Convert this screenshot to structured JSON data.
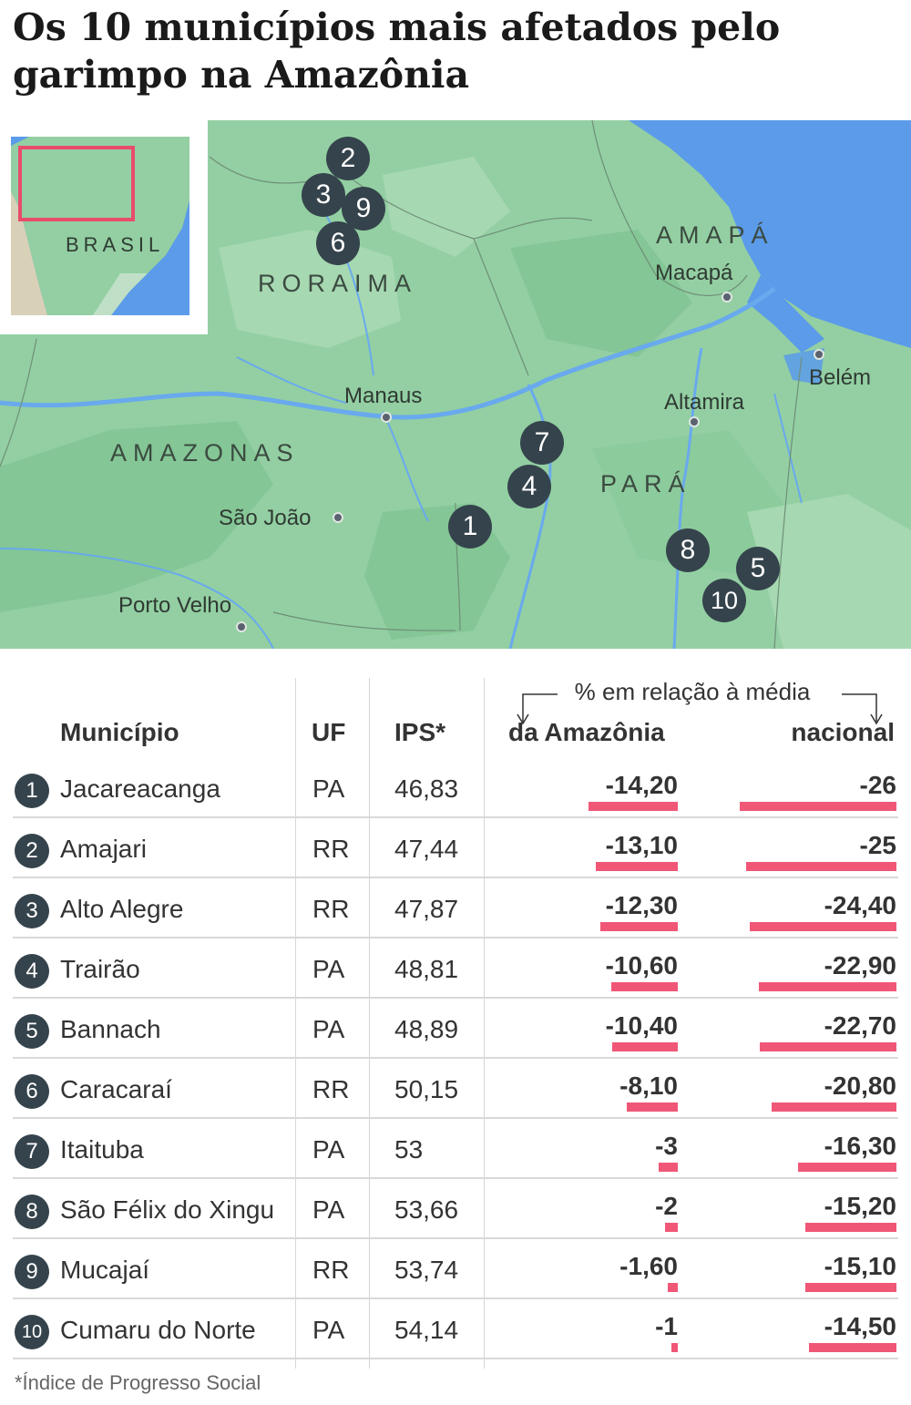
{
  "title": "Os 10 municípios mais afetados pelo garimpo na Amazônia",
  "map": {
    "inset_label": "BRASIL",
    "states": [
      "RORAIMA",
      "AMAPÁ",
      "AMAZONAS",
      "PARÁ"
    ],
    "cities": [
      "Macapá",
      "Belém",
      "Manaus",
      "Altamira",
      "São João",
      "Porto Velho"
    ],
    "markers": [
      "1",
      "2",
      "3",
      "4",
      "5",
      "6",
      "7",
      "8",
      "9",
      "10"
    ],
    "colors": {
      "land": "#93cfa2",
      "forest": "#7fc08f",
      "water": "#5b9bea",
      "river": "#69a9ee",
      "marker": "#35434c",
      "inset_box": "#e94b6b"
    }
  },
  "table": {
    "group_header": "% em relação à média",
    "columns": [
      "Município",
      "UF",
      "IPS*",
      "da Amazônia",
      "nacional"
    ],
    "bar_color": "#f05777",
    "rows": [
      {
        "rank": "1",
        "municipio": "Jacareacanga",
        "uf": "PA",
        "ips": "46,83",
        "amazonia": "-14,20",
        "nacional": "-26",
        "amazonia_value": -14.2,
        "nacional_value": -26
      },
      {
        "rank": "2",
        "municipio": "Amajari",
        "uf": "RR",
        "ips": "47,44",
        "amazonia": "-13,10",
        "nacional": "-25",
        "amazonia_value": -13.1,
        "nacional_value": -25
      },
      {
        "rank": "3",
        "municipio": "Alto Alegre",
        "uf": "RR",
        "ips": "47,87",
        "amazonia": "-12,30",
        "nacional": "-24,40",
        "amazonia_value": -12.3,
        "nacional_value": -24.4
      },
      {
        "rank": "4",
        "municipio": "Trairão",
        "uf": "PA",
        "ips": "48,81",
        "amazonia": "-10,60",
        "nacional": "-22,90",
        "amazonia_value": -10.6,
        "nacional_value": -22.9
      },
      {
        "rank": "5",
        "municipio": "Bannach",
        "uf": "PA",
        "ips": "48,89",
        "amazonia": "-10,40",
        "nacional": "-22,70",
        "amazonia_value": -10.4,
        "nacional_value": -22.7
      },
      {
        "rank": "6",
        "municipio": "Caracaraí",
        "uf": "RR",
        "ips": "50,15",
        "amazonia": "-8,10",
        "nacional": "-20,80",
        "amazonia_value": -8.1,
        "nacional_value": -20.8
      },
      {
        "rank": "7",
        "municipio": "Itaituba",
        "uf": "PA",
        "ips": "53",
        "amazonia": "-3",
        "nacional": "-16,30",
        "amazonia_value": -3,
        "nacional_value": -16.3
      },
      {
        "rank": "8",
        "municipio": "São Félix do Xingu",
        "uf": "PA",
        "ips": "53,66",
        "amazonia": "-2",
        "nacional": "-15,20",
        "amazonia_value": -2,
        "nacional_value": -15.2
      },
      {
        "rank": "9",
        "municipio": "Mucajaí",
        "uf": "RR",
        "ips": "53,74",
        "amazonia": "-1,60",
        "nacional": "-15,10",
        "amazonia_value": -1.6,
        "nacional_value": -15.1
      },
      {
        "rank": "10",
        "municipio": "Cumaru do Norte",
        "uf": "PA",
        "ips": "54,14",
        "amazonia": "-1",
        "nacional": "-14,50",
        "amazonia_value": -1,
        "nacional_value": -14.5
      }
    ]
  },
  "footnote": "*Índice de Progresso Social"
}
